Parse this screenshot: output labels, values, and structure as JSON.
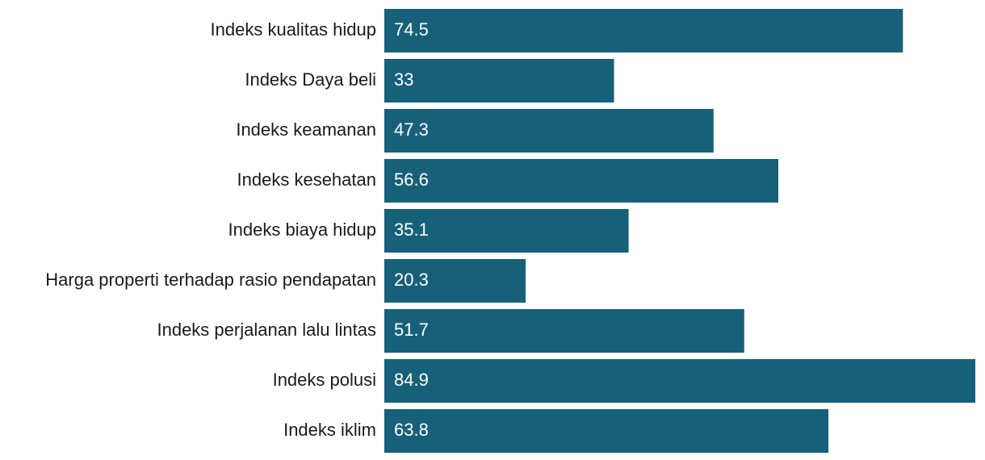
{
  "chart_data": {
    "type": "bar",
    "orientation": "horizontal",
    "categories": [
      "Indeks kualitas hidup",
      "Indeks Daya beli",
      "Indeks keamanan",
      "Indeks kesehatan",
      "Indeks biaya hidup",
      "Harga properti terhadap rasio pendapatan",
      "Indeks perjalanan lalu lintas",
      "Indeks polusi",
      "Indeks iklim"
    ],
    "values": [
      74.5,
      33,
      47.3,
      56.6,
      35.1,
      20.3,
      51.7,
      84.9,
      63.8
    ],
    "color": "#17607a"
  }
}
